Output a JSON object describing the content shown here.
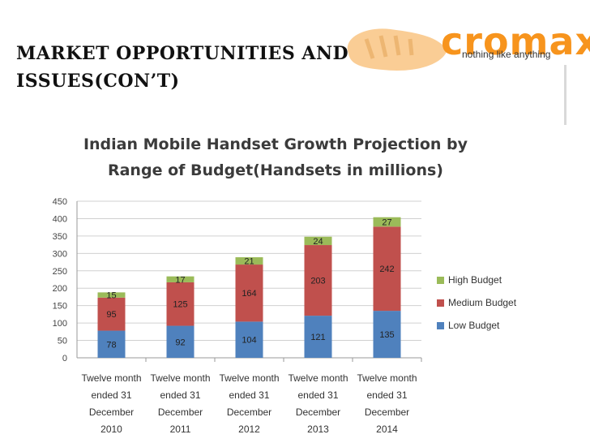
{
  "slide": {
    "title_line1": "MARKET OPPORTUNITIES AND",
    "title_line2": "ISSUES(CON’T)"
  },
  "logo": {
    "wordmark": "cromax",
    "tagline": "nothing like anything",
    "brand_color": "#f7941d"
  },
  "chart_data": {
    "type": "bar",
    "stacked": true,
    "title_line1": "Indian Mobile Handset Growth Projection by",
    "title_line2": "Range of Budget(Handsets in millions)",
    "categories": [
      [
        "Twelve month",
        "ended 31",
        "December",
        "2010"
      ],
      [
        "Twelve month",
        "ended 31",
        "December",
        "2011"
      ],
      [
        "Twelve month",
        "ended 31",
        "December",
        "2012"
      ],
      [
        "Twelve month",
        "ended 31",
        "December",
        "2013"
      ],
      [
        "Twelve month",
        "ended 31",
        "December",
        "2014"
      ]
    ],
    "series": [
      {
        "name": "Low Budget",
        "values": [
          78,
          92,
          104,
          121,
          135
        ],
        "color": "#4f81bd"
      },
      {
        "name": "Medium Budget",
        "values": [
          95,
          125,
          164,
          203,
          242
        ],
        "color": "#c0504d"
      },
      {
        "name": "High Budget",
        "values": [
          15,
          17,
          21,
          24,
          27
        ],
        "color": "#9bbb59"
      }
    ],
    "ylim": [
      0,
      450
    ],
    "yticks": [
      0,
      50,
      100,
      150,
      200,
      250,
      300,
      350,
      400,
      450
    ],
    "grid": true,
    "legend_position": "right",
    "legend_order": [
      "High Budget",
      "Medium Budget",
      "Low Budget"
    ]
  }
}
